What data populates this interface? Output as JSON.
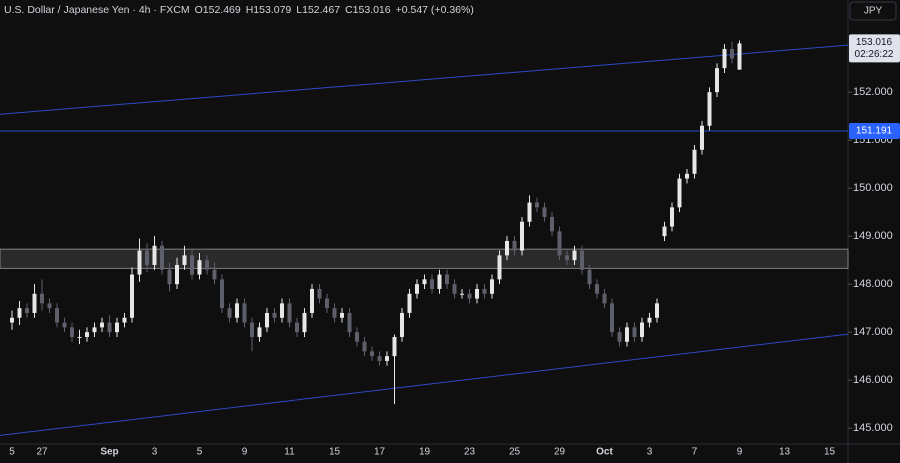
{
  "chart_data": {
    "type": "candlestick",
    "header": {
      "symbol": "U.S. Dollar / Japanese Yen · 4h · FXCM",
      "open": "O152.469",
      "high": "H153.079",
      "low": "L152.467",
      "close": "C153.016",
      "change": "+0.547 (+0.36%)"
    },
    "currency": "JPY",
    "categories": [
      "5",
      null,
      null,
      null,
      "27",
      null,
      null,
      null,
      null,
      null,
      null,
      null,
      null,
      "Sep",
      null,
      null,
      null,
      null,
      null,
      "3",
      null,
      null,
      null,
      null,
      null,
      "5",
      null,
      null,
      null,
      null,
      null,
      "9",
      null,
      null,
      null,
      null,
      null,
      "11",
      null,
      null,
      null,
      null,
      null,
      "15",
      null,
      null,
      null,
      null,
      null,
      "17",
      null,
      null,
      null,
      null,
      null,
      "19",
      null,
      null,
      null,
      null,
      null,
      "23",
      null,
      null,
      null,
      null,
      null,
      "25",
      null,
      null,
      null,
      null,
      null,
      "29",
      null,
      null,
      null,
      null,
      null,
      "Oct",
      null,
      null,
      null,
      null,
      null,
      "3",
      null,
      null,
      null,
      null,
      null,
      "7",
      null,
      null,
      null,
      null,
      null,
      "9",
      null,
      null,
      null,
      null,
      null,
      "13",
      null,
      null,
      null,
      null,
      null,
      "15"
    ],
    "open": [
      147.2,
      147.3,
      147.5,
      147.4,
      147.8,
      147.6,
      147.5,
      147.2,
      147.1,
      146.9,
      146.9,
      147.0,
      147.1,
      147.2,
      147.0,
      147.2,
      147.3,
      148.2,
      148.7,
      148.4,
      148.8,
      148.3,
      148.0,
      148.4,
      148.6,
      148.2,
      148.5,
      148.3,
      148.1,
      147.5,
      147.3,
      147.6,
      147.2,
      146.9,
      147.1,
      147.4,
      147.3,
      147.6,
      147.2,
      147.0,
      147.4,
      147.9,
      147.7,
      147.5,
      147.3,
      147.4,
      147.0,
      146.8,
      146.6,
      146.5,
      146.4,
      146.5,
      146.9,
      147.4,
      147.8,
      148.0,
      148.1,
      147.9,
      148.2,
      148.0,
      147.8,
      147.8,
      147.7,
      147.9,
      147.8,
      148.1,
      148.6,
      148.9,
      148.7,
      149.3,
      149.7,
      149.6,
      149.4,
      149.1,
      148.6,
      148.5,
      148.7,
      148.3,
      148.0,
      147.8,
      147.6,
      147.0,
      146.8,
      147.1,
      146.9,
      147.2,
      147.3,
      149.0,
      149.2,
      149.6,
      150.2,
      150.3,
      150.8,
      151.3,
      152.0,
      152.5,
      152.9,
      152.469,
      null,
      null,
      null,
      null,
      null,
      null,
      null,
      null,
      null,
      null,
      null,
      null
    ],
    "high": [
      147.45,
      147.65,
      147.6,
      148.0,
      148.1,
      147.7,
      147.6,
      147.3,
      147.2,
      147.05,
      147.1,
      147.2,
      147.3,
      147.35,
      147.3,
      147.4,
      148.35,
      148.95,
      148.85,
      149.0,
      148.9,
      148.45,
      148.55,
      148.8,
      148.7,
      148.65,
      148.6,
      148.45,
      148.2,
      147.6,
      147.7,
      147.7,
      147.3,
      147.2,
      147.5,
      147.5,
      147.7,
      147.7,
      147.3,
      147.5,
      148.0,
      148.0,
      147.8,
      147.6,
      147.5,
      147.5,
      147.1,
      146.9,
      146.7,
      146.6,
      146.6,
      146.95,
      147.5,
      147.9,
      148.1,
      148.2,
      148.2,
      148.3,
      148.3,
      148.1,
      147.9,
      147.9,
      148.0,
      148.0,
      148.2,
      148.7,
      149.0,
      149.0,
      149.4,
      149.85,
      149.8,
      149.7,
      149.5,
      149.2,
      148.7,
      148.8,
      148.8,
      148.4,
      148.1,
      147.9,
      147.7,
      147.1,
      147.2,
      147.2,
      147.3,
      147.4,
      147.7,
      149.3,
      149.7,
      150.3,
      150.4,
      150.9,
      151.4,
      152.1,
      152.6,
      153.0,
      153.05,
      153.079,
      null,
      null,
      null,
      null,
      null,
      null,
      null,
      null,
      null,
      null,
      null,
      null
    ],
    "low": [
      147.05,
      147.15,
      147.3,
      147.3,
      147.45,
      147.4,
      147.1,
      147.0,
      146.8,
      146.75,
      146.8,
      146.9,
      147.0,
      146.9,
      146.9,
      147.1,
      147.2,
      148.05,
      148.25,
      148.3,
      148.2,
      147.85,
      147.9,
      148.3,
      148.1,
      148.1,
      148.2,
      148.0,
      147.4,
      147.2,
      147.2,
      147.1,
      146.6,
      146.8,
      147.0,
      147.2,
      147.2,
      147.1,
      146.9,
      146.9,
      147.3,
      147.6,
      147.4,
      147.2,
      147.2,
      146.9,
      146.7,
      146.5,
      146.4,
      146.3,
      146.3,
      145.5,
      146.8,
      147.3,
      147.7,
      147.9,
      147.8,
      147.8,
      147.9,
      147.7,
      147.7,
      147.6,
      147.6,
      147.7,
      147.7,
      148.0,
      148.5,
      148.6,
      148.6,
      149.2,
      149.5,
      149.3,
      149.0,
      148.5,
      148.4,
      148.4,
      148.2,
      147.9,
      147.7,
      147.5,
      146.9,
      146.7,
      146.7,
      146.8,
      146.8,
      147.1,
      147.2,
      148.9,
      149.1,
      149.5,
      150.1,
      150.2,
      150.7,
      151.2,
      151.9,
      152.4,
      152.6,
      152.467,
      null,
      null,
      null,
      null,
      null,
      null,
      null,
      null,
      null,
      null,
      null,
      null
    ],
    "close": [
      147.3,
      147.5,
      147.4,
      147.8,
      147.6,
      147.5,
      147.2,
      147.1,
      146.9,
      146.9,
      147.0,
      147.1,
      147.2,
      147.0,
      147.2,
      147.3,
      148.2,
      148.7,
      148.4,
      148.8,
      148.3,
      148.0,
      148.4,
      148.6,
      148.2,
      148.5,
      148.3,
      148.1,
      147.5,
      147.3,
      147.6,
      147.2,
      146.9,
      147.1,
      147.4,
      147.3,
      147.6,
      147.2,
      147.0,
      147.4,
      147.9,
      147.7,
      147.5,
      147.3,
      147.4,
      147.0,
      146.8,
      146.6,
      146.5,
      146.4,
      146.5,
      146.9,
      147.4,
      147.8,
      148.0,
      148.1,
      147.9,
      148.2,
      148.0,
      147.8,
      147.8,
      147.7,
      147.9,
      147.8,
      148.1,
      148.6,
      148.9,
      148.7,
      149.3,
      149.7,
      149.6,
      149.4,
      149.1,
      148.6,
      148.5,
      148.7,
      148.3,
      148.0,
      147.8,
      147.6,
      147.0,
      146.8,
      147.1,
      146.9,
      147.2,
      147.3,
      147.6,
      149.2,
      149.6,
      150.2,
      150.3,
      150.8,
      151.3,
      152.0,
      152.5,
      152.9,
      152.7,
      153.016,
      null,
      null,
      null,
      null,
      null,
      null,
      null,
      null,
      null,
      null,
      null,
      null
    ],
    "up_color": "#e6e6e6",
    "down_color": "#5d606b",
    "line_color": "#2e48c8",
    "ylim": [
      144.67,
      153.92
    ],
    "yticks": [
      {
        "value": 145,
        "label": "145.000"
      },
      {
        "value": 146,
        "label": "146.000"
      },
      {
        "value": 147,
        "label": "147.000"
      },
      {
        "value": 148,
        "label": "148.000"
      },
      {
        "value": 149,
        "label": "149.000"
      },
      {
        "value": 150,
        "label": "150.000"
      },
      {
        "value": 151,
        "label": "151.000"
      },
      {
        "value": 152,
        "label": "152.000"
      }
    ],
    "trendlines": [
      {
        "start": [
          -1.6,
          151.54
        ],
        "end": [
          111.5,
          152.98
        ]
      },
      {
        "start": [
          -1.6,
          144.85
        ],
        "end": [
          111.5,
          146.96
        ]
      }
    ],
    "level": {
      "value": 151.191,
      "label": "151.191"
    },
    "zone": [
      148.33,
      148.73
    ],
    "last_price": {
      "value": 153.016,
      "label": "153.016",
      "countdown": "02:26:22"
    }
  }
}
